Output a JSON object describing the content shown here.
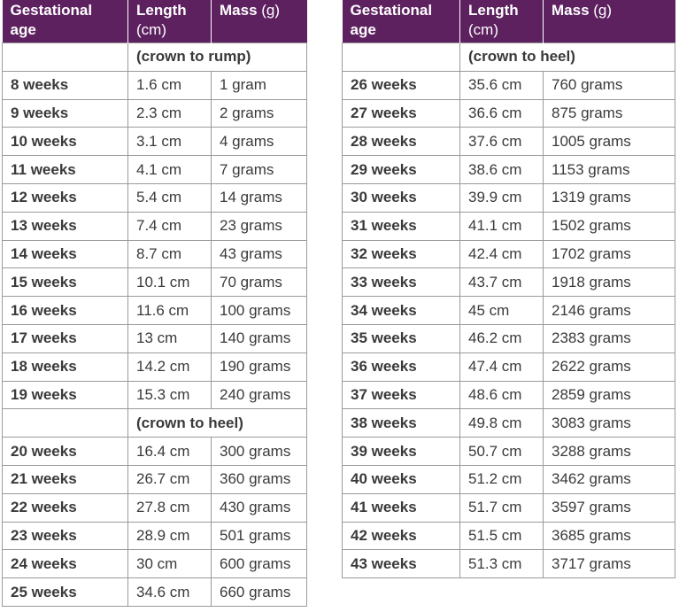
{
  "tables": [
    {
      "header": [
        {
          "label": "Gestational age"
        },
        {
          "label": "Length",
          "unit": "(cm)"
        },
        {
          "label": "Mass",
          "unit": "(g)"
        }
      ],
      "rows": [
        {
          "section": "(crown to rump)"
        },
        [
          "8 weeks",
          "1.6 cm",
          "1 gram"
        ],
        [
          "9 weeks",
          "2.3 cm",
          "2 grams"
        ],
        [
          "10 weeks",
          "3.1 cm",
          "4 grams"
        ],
        [
          "11 weeks",
          "4.1 cm",
          "7 grams"
        ],
        [
          "12 weeks",
          "5.4 cm",
          "14 grams"
        ],
        [
          "13 weeks",
          "7.4 cm",
          "23 grams"
        ],
        [
          "14 weeks",
          "8.7 cm",
          "43 grams"
        ],
        [
          "15 weeks",
          "10.1 cm",
          "70 grams"
        ],
        [
          "16 weeks",
          "11.6 cm",
          "100 grams"
        ],
        [
          "17 weeks",
          "13 cm",
          "140 grams"
        ],
        [
          "18 weeks",
          "14.2 cm",
          "190 grams"
        ],
        [
          "19 weeks",
          "15.3 cm",
          "240 grams"
        ],
        {
          "section": "(crown to heel)"
        },
        [
          "20 weeks",
          "16.4 cm",
          "300 grams"
        ],
        [
          "21 weeks",
          "26.7 cm",
          "360 grams"
        ],
        [
          "22 weeks",
          "27.8 cm",
          "430 grams"
        ],
        [
          "23 weeks",
          "28.9 cm",
          "501 grams"
        ],
        [
          "24 weeks",
          "30 cm",
          "600 grams"
        ],
        [
          "25 weeks",
          "34.6 cm",
          "660 grams"
        ]
      ]
    },
    {
      "header": [
        {
          "label": "Gestational age"
        },
        {
          "label": "Length",
          "unit": "(cm)"
        },
        {
          "label": "Mass",
          "unit": "(g)"
        }
      ],
      "rows": [
        {
          "section": "(crown to heel)"
        },
        [
          "26 weeks",
          "35.6 cm",
          "760 grams"
        ],
        [
          "27 weeks",
          "36.6 cm",
          "875 grams"
        ],
        [
          "28 weeks",
          "37.6 cm",
          "1005 grams"
        ],
        [
          "29 weeks",
          "38.6 cm",
          "1153 grams"
        ],
        [
          "30 weeks",
          "39.9 cm",
          "1319 grams"
        ],
        [
          "31 weeks",
          "41.1 cm",
          "1502 grams"
        ],
        [
          "32 weeks",
          "42.4 cm",
          "1702 grams"
        ],
        [
          "33 weeks",
          "43.7 cm",
          "1918 grams"
        ],
        [
          "34 weeks",
          "45 cm",
          "2146 grams"
        ],
        [
          "35 weeks",
          "46.2 cm",
          "2383 grams"
        ],
        [
          "36 weeks",
          "47.4 cm",
          "2622 grams"
        ],
        [
          "37 weeks",
          "48.6 cm",
          "2859 grams"
        ],
        [
          "38 weeks",
          "49.8 cm",
          "3083 grams"
        ],
        [
          "39 weeks",
          "50.7 cm",
          "3288 grams"
        ],
        [
          "40 weeks",
          "51.2 cm",
          "3462 grams"
        ],
        [
          "41 weeks",
          "51.7 cm",
          "3597 grams"
        ],
        [
          "42 weeks",
          "51.5 cm",
          "3685 grams"
        ],
        [
          "43 weeks",
          "51.3 cm",
          "3717 grams"
        ]
      ]
    }
  ]
}
